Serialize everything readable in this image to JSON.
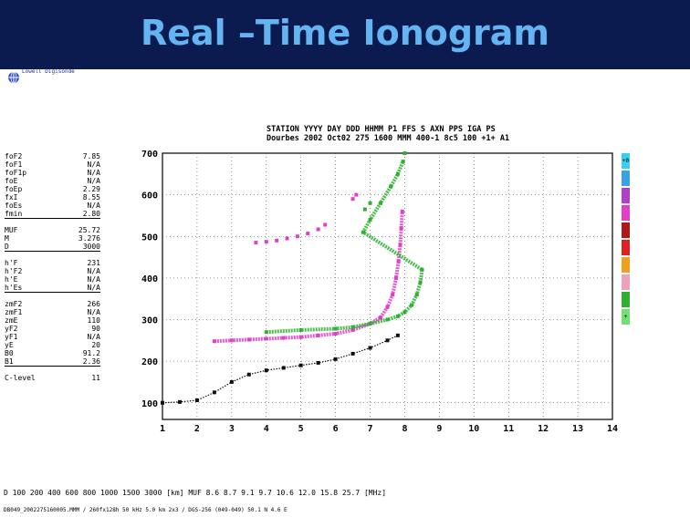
{
  "slide": {
    "title": "Real –Time Ionogram",
    "logo_text": "Lowell Digisonde",
    "logo_icon": "globe-icon"
  },
  "header": {
    "labels": "STATION     YYYY DAY    DDD HHMM P1  FFS S AXN PPS IGA PS",
    "values": "Dourbes     2002 Oct02 275 1600 MMM 400-1 8c5 100 +1+ A1"
  },
  "params": [
    {
      "name": "foF2",
      "value": "7.85"
    },
    {
      "name": "foF1",
      "value": "N/A"
    },
    {
      "name": "foF1p",
      "value": "N/A"
    },
    {
      "name": "foE",
      "value": "N/A"
    },
    {
      "name": "foEp",
      "value": "2.29"
    },
    {
      "name": "fxI",
      "value": "8.55"
    },
    {
      "name": "foEs",
      "value": "N/A"
    },
    {
      "name": "fmin",
      "value": "2.80"
    },
    {
      "name": "MUF",
      "value": "25.72"
    },
    {
      "name": "M",
      "value": "3.276"
    },
    {
      "name": "D",
      "value": "3000"
    },
    {
      "name": "h'F",
      "value": "231"
    },
    {
      "name": "h'F2",
      "value": "N/A"
    },
    {
      "name": "h'E",
      "value": "N/A"
    },
    {
      "name": "h'Es",
      "value": "N/A"
    },
    {
      "name": "zmF2",
      "value": "266"
    },
    {
      "name": "zmF1",
      "value": "N/A"
    },
    {
      "name": "zmE",
      "value": "110"
    },
    {
      "name": "yF2",
      "value": "90"
    },
    {
      "name": "yF1",
      "value": "N/A"
    },
    {
      "name": "yE",
      "value": "20"
    },
    {
      "name": "B0",
      "value": "91.2"
    },
    {
      "name": "B1",
      "value": "2.36"
    },
    {
      "name": "C-level",
      "value": "11"
    }
  ],
  "legend": [
    {
      "label": "+0",
      "color": "#37d0ee"
    },
    {
      "label": "",
      "color": "#3aa0e8"
    },
    {
      "label": "",
      "color": "#b040c8"
    },
    {
      "label": "",
      "color": "#e040c8"
    },
    {
      "label": "",
      "color": "#b01818"
    },
    {
      "label": "",
      "color": "#e02020"
    },
    {
      "label": "",
      "color": "#f0a020"
    },
    {
      "label": "",
      "color": "#f0a0b8"
    },
    {
      "label": "",
      "color": "#30b030"
    },
    {
      "label": "+",
      "color": "#70e070"
    }
  ],
  "bottom_table": {
    "row1": "D     100   200   400   600   800  1000  1500  3000  [km]",
    "row2": "MUF   8.6   8.7   9.1   9.7  10.6  12.0  15.8  25.7  [MHz]"
  },
  "footer": "DB049_2002275160005.MMM / 260fx128h 50 kHz 5.0 km 2x3 / DGS-256 (049-049) 50.1 N  4.6 E",
  "chart_data": {
    "type": "scatter",
    "xlim": [
      1,
      14
    ],
    "ylim": [
      60,
      700
    ],
    "x_ticks": [
      1,
      2,
      3,
      4,
      5,
      6,
      7,
      8,
      9,
      10,
      11,
      12,
      13,
      14
    ],
    "y_ticks": [
      100,
      200,
      300,
      400,
      500,
      600,
      700
    ],
    "grid": true,
    "series": [
      {
        "color": "#e040c8",
        "points": [
          [
            2.5,
            248
          ],
          [
            3.0,
            250
          ],
          [
            3.5,
            252
          ],
          [
            4.0,
            254
          ],
          [
            4.5,
            256
          ],
          [
            5.0,
            258
          ],
          [
            5.5,
            262
          ],
          [
            6.0,
            266
          ],
          [
            6.5,
            275
          ],
          [
            7.0,
            290
          ],
          [
            7.3,
            305
          ],
          [
            7.5,
            330
          ],
          [
            7.65,
            360
          ],
          [
            7.75,
            400
          ],
          [
            7.82,
            440
          ],
          [
            7.87,
            480
          ],
          [
            7.9,
            520
          ],
          [
            7.93,
            560
          ],
          [
            3.7,
            485
          ],
          [
            4.0,
            487
          ],
          [
            4.3,
            490
          ],
          [
            4.6,
            495
          ],
          [
            4.9,
            500
          ],
          [
            5.2,
            507
          ],
          [
            5.5,
            517
          ],
          [
            5.7,
            528
          ],
          [
            6.5,
            590
          ],
          [
            6.6,
            600
          ],
          [
            1.0,
            100
          ]
        ]
      },
      {
        "color": "#30b030",
        "points": [
          [
            4.0,
            270
          ],
          [
            5.0,
            275
          ],
          [
            6.0,
            278
          ],
          [
            6.5,
            282
          ],
          [
            7.0,
            290
          ],
          [
            7.5,
            300
          ],
          [
            7.8,
            308
          ],
          [
            8.0,
            318
          ],
          [
            8.2,
            335
          ],
          [
            8.35,
            360
          ],
          [
            8.45,
            390
          ],
          [
            8.5,
            420
          ],
          [
            6.8,
            510
          ],
          [
            7.0,
            540
          ],
          [
            7.3,
            580
          ],
          [
            7.6,
            620
          ],
          [
            7.8,
            650
          ],
          [
            7.95,
            680
          ],
          [
            8.0,
            700
          ],
          [
            6.85,
            565
          ],
          [
            7.0,
            580
          ]
        ]
      },
      {
        "color": "#101010",
        "points": [
          [
            1.0,
            100
          ],
          [
            1.5,
            102
          ],
          [
            2.0,
            106
          ],
          [
            2.5,
            125
          ],
          [
            3.0,
            150
          ],
          [
            3.5,
            168
          ],
          [
            4.0,
            178
          ],
          [
            4.5,
            184
          ],
          [
            5.0,
            190
          ],
          [
            5.5,
            196
          ],
          [
            6.0,
            205
          ],
          [
            6.5,
            218
          ],
          [
            7.0,
            232
          ],
          [
            7.5,
            250
          ],
          [
            7.8,
            262
          ]
        ]
      }
    ]
  }
}
